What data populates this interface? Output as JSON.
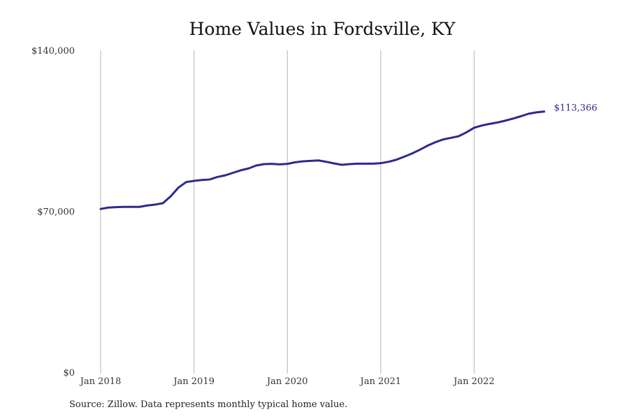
{
  "chart_data": {
    "type": "line",
    "title": "Home Values in Fordsville, KY",
    "xlabel": "",
    "ylabel": "",
    "ylim": [
      0,
      140000
    ],
    "y_ticks": [
      {
        "value": 0,
        "label": "$0"
      },
      {
        "value": 70000,
        "label": "$70,000"
      },
      {
        "value": 140000,
        "label": "$140,000"
      }
    ],
    "x_ticks": [
      "Jan 2018",
      "Jan 2019",
      "Jan 2020",
      "Jan 2021",
      "Jan 2022"
    ],
    "xlim": [
      "2018-01",
      "2022-10"
    ],
    "grid": "vertical lines at x ticks",
    "line_color": "#2e2a8c",
    "end_label": "$113,366",
    "series": [
      {
        "x": [
          "2018-01",
          "2018-02",
          "2018-03",
          "2018-04",
          "2018-05",
          "2018-06",
          "2018-07",
          "2018-08",
          "2018-09",
          "2018-10",
          "2018-11",
          "2018-12",
          "2019-01",
          "2019-02",
          "2019-03",
          "2019-04",
          "2019-05",
          "2019-06",
          "2019-07",
          "2019-08",
          "2019-09",
          "2019-10",
          "2019-11",
          "2019-12",
          "2020-01",
          "2020-02",
          "2020-03",
          "2020-04",
          "2020-05",
          "2020-06",
          "2020-07",
          "2020-08",
          "2020-09",
          "2020-10",
          "2020-11",
          "2020-12",
          "2021-01",
          "2021-02",
          "2021-03",
          "2021-04",
          "2021-05",
          "2021-06",
          "2021-07",
          "2021-08",
          "2021-09",
          "2021-10",
          "2021-11",
          "2021-12",
          "2022-01",
          "2022-02",
          "2022-03",
          "2022-04",
          "2022-05",
          "2022-06",
          "2022-07",
          "2022-08",
          "2022-09",
          "2022-10"
        ],
        "values": [
          71000,
          71600,
          71800,
          71900,
          71900,
          71900,
          72500,
          72900,
          73500,
          76500,
          80300,
          82700,
          83200,
          83600,
          83800,
          84900,
          85600,
          86700,
          87800,
          88600,
          89900,
          90500,
          90600,
          90400,
          90600,
          91300,
          91700,
          91900,
          92100,
          91500,
          90800,
          90200,
          90500,
          90700,
          90700,
          90700,
          90900,
          91500,
          92400,
          93700,
          95100,
          96700,
          98500,
          100000,
          101200,
          101900,
          102600,
          104300,
          106300,
          107300,
          108000,
          108600,
          109400,
          110300,
          111300,
          112400,
          113000,
          113366
        ]
      }
    ]
  },
  "footer": {
    "source": "Source: Zillow. Data represents monthly typical home value."
  }
}
